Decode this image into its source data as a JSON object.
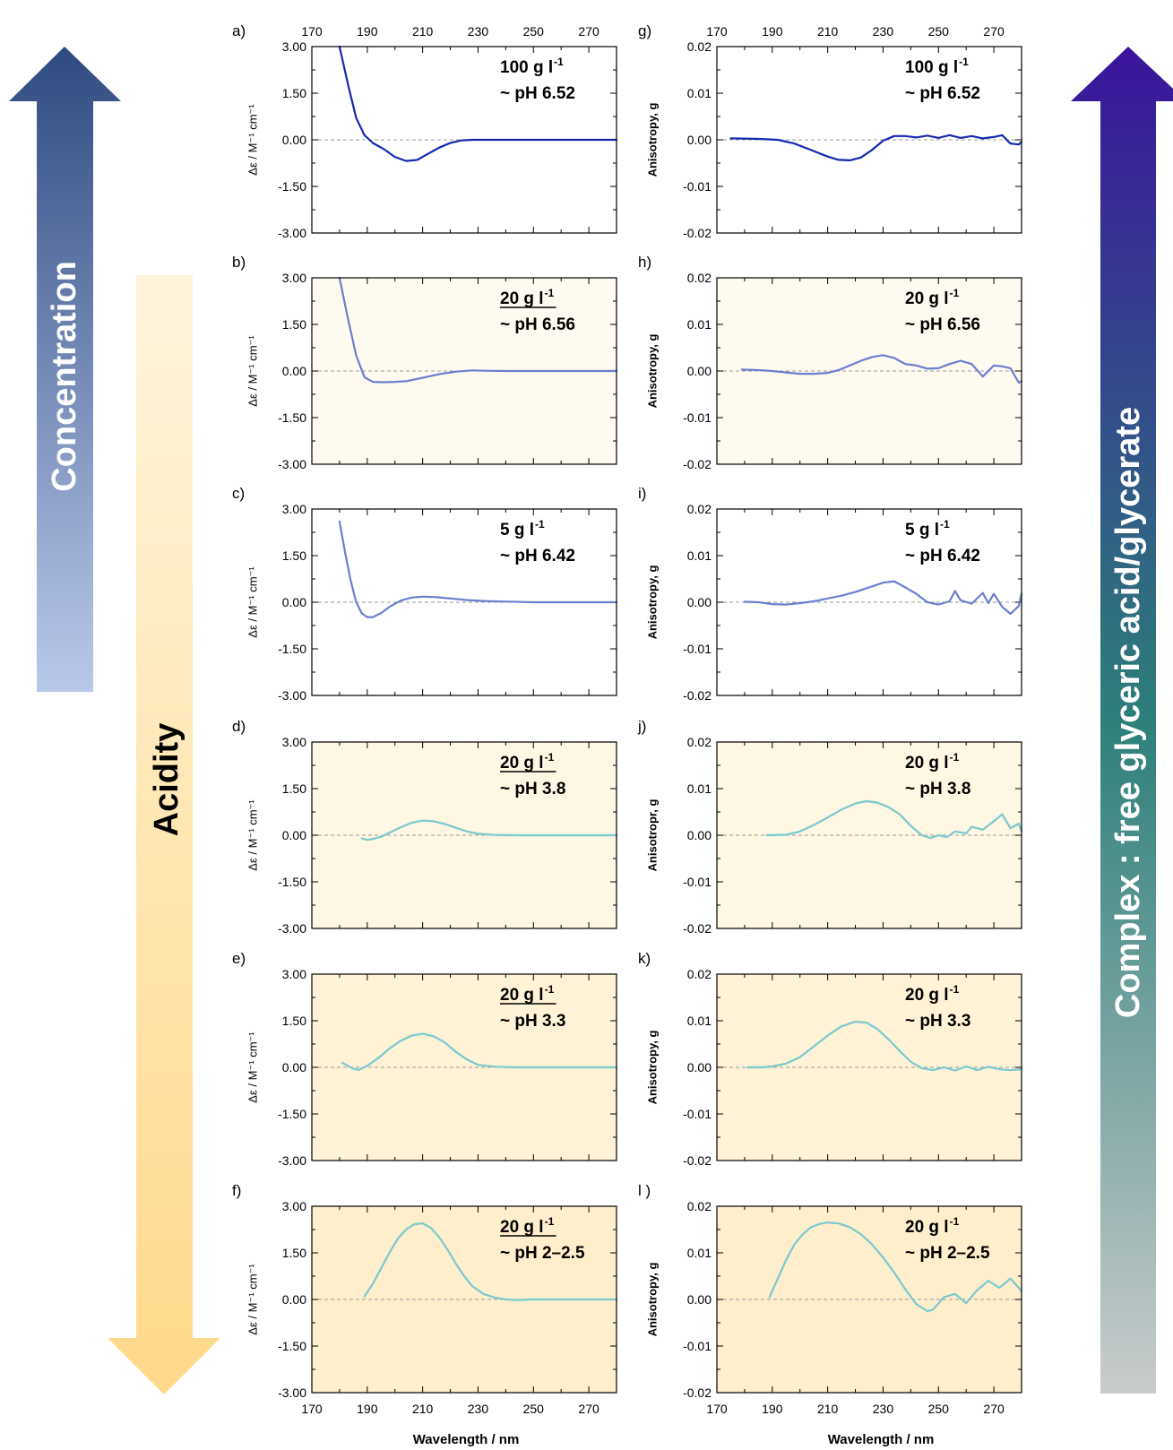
{
  "arrows": {
    "concentration": {
      "label": "Concentration",
      "color_top": "#2f4a80",
      "color_bottom": "#b9c9ea"
    },
    "acidity": {
      "label": "Acidity",
      "color_top": "#fff4dc",
      "color_bottom": "#ffd98a"
    },
    "complex": {
      "label": "Complex : free glyceric acid/glycerate",
      "color_top": "#3a139c",
      "color_mid": "#2d7f7a",
      "color_bottom": "#c9cccc"
    }
  },
  "colors": {
    "dark_blue": "#1529b0",
    "medium_blue": "#6b7fd0",
    "teal": "#79c9cf",
    "zero_line": "#9a9a9a"
  },
  "x_ticks": [
    "170",
    "190",
    "210",
    "230",
    "250",
    "270"
  ],
  "left_y_ticks": [
    "3.00",
    "1.50",
    "0.00",
    "-1.50",
    "-3.00"
  ],
  "right_y_ticks": [
    "0.02",
    "0.01",
    "0.00",
    "-0.01",
    "-0.02"
  ],
  "xlabel": "Wavelength / nm",
  "chart_data": [
    {
      "panel": "a)",
      "type": "line",
      "column": "left",
      "ylabel": "Δε / M⁻¹ cm⁻¹",
      "xlim": [
        170,
        280
      ],
      "ylim": [
        -3,
        3
      ],
      "conc_num": "100 g l",
      "conc_sup": "-1",
      "conc_underline": false,
      "ph": "~ pH 6.52",
      "bg": "#ffffff",
      "line_color": "#1529b0",
      "x": [
        180,
        183,
        186,
        189,
        192,
        196,
        200,
        204,
        208,
        212,
        216,
        220,
        224,
        228,
        232,
        240,
        250,
        260,
        270,
        280
      ],
      "y": [
        3.0,
        1.8,
        0.7,
        0.15,
        -0.1,
        -0.3,
        -0.55,
        -0.68,
        -0.65,
        -0.45,
        -0.25,
        -0.1,
        -0.02,
        0.0,
        0.0,
        0.0,
        0.0,
        0.0,
        0.0,
        0.0
      ]
    },
    {
      "panel": "b)",
      "type": "line",
      "column": "left",
      "ylabel": "Δε / M⁻¹ cm⁻¹",
      "xlim": [
        170,
        280
      ],
      "ylim": [
        -3,
        3
      ],
      "conc_num": "20 g l",
      "conc_sup": "-1",
      "conc_underline": true,
      "ph": "~ pH 6.56",
      "bg": "#fffaf0",
      "line_color": "#6b7fd0",
      "x": [
        180,
        183,
        186,
        189,
        192,
        196,
        200,
        204,
        210,
        216,
        222,
        228,
        232,
        240,
        250,
        260,
        270,
        280
      ],
      "y": [
        3.0,
        1.7,
        0.5,
        -0.2,
        -0.35,
        -0.36,
        -0.35,
        -0.33,
        -0.22,
        -0.1,
        -0.02,
        0.02,
        0.01,
        0.0,
        0.0,
        0.0,
        0.0,
        0.0
      ]
    },
    {
      "panel": "c)",
      "type": "line",
      "column": "left",
      "ylabel": "Δε / M⁻¹ cm⁻¹",
      "xlim": [
        170,
        280
      ],
      "ylim": [
        -3,
        3
      ],
      "conc_num": "5 g l",
      "conc_sup": "-1",
      "conc_underline": false,
      "ph": "~ pH 6.42",
      "bg": "#ffffff",
      "line_color": "#6b7fd0",
      "x": [
        180,
        182,
        184,
        186,
        188,
        190,
        192,
        195,
        198,
        202,
        206,
        210,
        214,
        220,
        226,
        232,
        240,
        250,
        260,
        270,
        280
      ],
      "y": [
        2.6,
        1.6,
        0.7,
        0.0,
        -0.35,
        -0.48,
        -0.48,
        -0.35,
        -0.15,
        0.05,
        0.15,
        0.18,
        0.17,
        0.12,
        0.07,
        0.04,
        0.02,
        0.0,
        0.0,
        0.0,
        0.0
      ]
    },
    {
      "panel": "d)",
      "type": "line",
      "column": "left",
      "ylabel": "Δε / M⁻¹ cm⁻¹",
      "xlim": [
        170,
        280
      ],
      "ylim": [
        -3,
        3
      ],
      "conc_num": "20 g l",
      "conc_sup": "-1",
      "conc_underline": true,
      "ph": "~ pH 3.8",
      "bg": "#fff6e3",
      "line_color": "#79c9cf",
      "x": [
        188,
        190,
        192,
        195,
        198,
        202,
        206,
        210,
        214,
        218,
        222,
        226,
        230,
        236,
        244,
        252,
        260,
        270,
        280
      ],
      "y": [
        -0.1,
        -0.15,
        -0.12,
        -0.05,
        0.08,
        0.25,
        0.4,
        0.47,
        0.45,
        0.36,
        0.24,
        0.12,
        0.05,
        0.01,
        0.0,
        0.0,
        0.0,
        0.0,
        0.0
      ]
    },
    {
      "panel": "e)",
      "type": "line",
      "column": "left",
      "ylabel": "Δε / M⁻¹ cm⁻¹",
      "xlim": [
        170,
        280
      ],
      "ylim": [
        -3,
        3
      ],
      "conc_num": "20 g l",
      "conc_sup": "-1",
      "conc_underline": true,
      "ph": "~ pH 3.3",
      "bg": "#fff2d6",
      "line_color": "#79c9cf",
      "x": [
        181,
        183,
        185,
        187,
        190,
        194,
        198,
        202,
        206,
        210,
        214,
        218,
        222,
        226,
        230,
        236,
        244,
        252,
        260,
        270,
        280
      ],
      "y": [
        0.15,
        0.05,
        -0.05,
        -0.08,
        0.05,
        0.3,
        0.6,
        0.85,
        1.02,
        1.08,
        1.0,
        0.8,
        0.5,
        0.25,
        0.08,
        0.02,
        0.0,
        0.0,
        0.0,
        0.0,
        0.0
      ]
    },
    {
      "panel": "f)",
      "type": "line",
      "column": "left",
      "ylabel": "Δε / M⁻¹ cm⁻¹",
      "xlim": [
        170,
        280
      ],
      "ylim": [
        -3,
        3
      ],
      "conc_num": "20 g l",
      "conc_sup": "-1",
      "conc_underline": true,
      "ph": "~ pH 2–2.5",
      "bg": "#ffeecc",
      "line_color": "#79c9cf",
      "x": [
        189,
        192,
        195,
        198,
        201,
        204,
        207,
        210,
        213,
        216,
        219,
        222,
        225,
        228,
        232,
        236,
        240,
        244,
        250,
        260,
        270,
        280
      ],
      "y": [
        0.1,
        0.5,
        1.0,
        1.5,
        1.95,
        2.25,
        2.42,
        2.45,
        2.3,
        2.0,
        1.6,
        1.15,
        0.75,
        0.42,
        0.18,
        0.06,
        0.0,
        -0.02,
        0.0,
        0.0,
        0.0,
        0.0
      ]
    },
    {
      "panel": "g)",
      "type": "line",
      "column": "right",
      "ylabel": "Anisotropy, g",
      "xlim": [
        170,
        280
      ],
      "ylim": [
        -0.02,
        0.02
      ],
      "conc_num": "100 g l",
      "conc_sup": "-1",
      "conc_underline": false,
      "ph": "~ pH 6.52",
      "bg": "#ffffff",
      "line_color": "#1529b0",
      "x": [
        175,
        185,
        192,
        198,
        204,
        210,
        214,
        218,
        222,
        226,
        230,
        234,
        238,
        242,
        246,
        250,
        254,
        258,
        262,
        266,
        270,
        273,
        276,
        279,
        280
      ],
      "y": [
        0.0003,
        0.0002,
        0.0,
        -0.0008,
        -0.0022,
        -0.0036,
        -0.0043,
        -0.0044,
        -0.0038,
        -0.0022,
        -0.0002,
        0.0008,
        0.0008,
        0.0005,
        0.0009,
        0.0004,
        0.001,
        0.0004,
        0.0008,
        0.0003,
        0.0006,
        0.001,
        -0.0008,
        -0.001,
        -0.0004
      ]
    },
    {
      "panel": "h)",
      "type": "line",
      "column": "right",
      "ylabel": "Anisotropy, g",
      "xlim": [
        170,
        280
      ],
      "ylim": [
        -0.02,
        0.02
      ],
      "conc_num": "20 g l",
      "conc_sup": "-1",
      "conc_underline": false,
      "ph": "~ pH 6.56",
      "bg": "#fffaf0",
      "line_color": "#6b7fd0",
      "x": [
        179,
        185,
        190,
        195,
        200,
        205,
        210,
        214,
        218,
        222,
        226,
        230,
        234,
        238,
        242,
        246,
        250,
        254,
        258,
        262,
        266,
        270,
        273,
        276,
        279,
        280
      ],
      "y": [
        0.0003,
        0.0002,
        0.0,
        -0.0003,
        -0.0006,
        -0.0006,
        -0.0004,
        0.0002,
        0.0012,
        0.0022,
        0.003,
        0.0034,
        0.0028,
        0.0015,
        0.0012,
        0.0005,
        0.0006,
        0.0015,
        0.0022,
        0.0015,
        -0.0012,
        0.0012,
        0.001,
        0.0006,
        -0.0025,
        -0.0022
      ]
    },
    {
      "panel": "i)",
      "type": "line",
      "column": "right",
      "ylabel": "Anisotropy, g",
      "xlim": [
        170,
        280
      ],
      "ylim": [
        -0.02,
        0.02
      ],
      "conc_num": "5 g l",
      "conc_sup": "-1",
      "conc_underline": false,
      "ph": "~ pH 6.42",
      "bg": "#ffffff",
      "line_color": "#6b7fd0",
      "x": [
        180,
        185,
        190,
        195,
        200,
        205,
        210,
        215,
        220,
        225,
        230,
        234,
        238,
        242,
        246,
        250,
        254,
        256,
        258,
        262,
        266,
        268,
        270,
        273,
        276,
        279,
        280
      ],
      "y": [
        0.0001,
        0.0,
        -0.0004,
        -0.0005,
        -0.0002,
        0.0002,
        0.0008,
        0.0014,
        0.0022,
        0.0032,
        0.0042,
        0.0045,
        0.0032,
        0.0018,
        0.0,
        -0.0005,
        0.0002,
        0.0024,
        0.0004,
        -0.0003,
        0.002,
        -0.0002,
        0.0018,
        -0.001,
        -0.0025,
        -0.0008,
        0.0018
      ]
    },
    {
      "panel": "j)",
      "type": "line",
      "column": "right",
      "ylabel": "Anisotropr, g",
      "xlim": [
        170,
        280
      ],
      "ylim": [
        -0.02,
        0.02
      ],
      "conc_num": "20 g l",
      "conc_sup": "-1",
      "conc_underline": false,
      "ph": "~ pH 3.8",
      "bg": "#fff6e3",
      "line_color": "#79c9cf",
      "x": [
        188,
        195,
        200,
        205,
        210,
        215,
        220,
        224,
        228,
        232,
        236,
        240,
        244,
        247,
        250,
        253,
        256,
        260,
        262,
        266,
        270,
        273,
        276,
        279,
        280
      ],
      "y": [
        0.0,
        0.0001,
        0.0008,
        0.0022,
        0.0038,
        0.0055,
        0.0068,
        0.0073,
        0.007,
        0.006,
        0.0045,
        0.002,
        0.0,
        -0.0006,
        0.0,
        -0.0004,
        0.0008,
        0.0004,
        0.0018,
        0.0012,
        0.003,
        0.0045,
        0.0015,
        0.0025,
        0.0008
      ]
    },
    {
      "panel": "k)",
      "type": "line",
      "column": "right",
      "ylabel": "Anisotropy, g",
      "xlim": [
        170,
        280
      ],
      "ylim": [
        -0.02,
        0.02
      ],
      "conc_num": "20 g l",
      "conc_sup": "-1",
      "conc_underline": false,
      "ph": "~ pH 3.3",
      "bg": "#fff2d6",
      "line_color": "#79c9cf",
      "x": [
        181,
        186,
        190,
        195,
        200,
        205,
        210,
        215,
        220,
        224,
        228,
        232,
        236,
        240,
        244,
        248,
        252,
        256,
        260,
        264,
        268,
        272,
        276,
        280
      ],
      "y": [
        0.0,
        0.0,
        0.0002,
        0.0008,
        0.0022,
        0.0045,
        0.0068,
        0.0088,
        0.0098,
        0.0096,
        0.0082,
        0.006,
        0.0035,
        0.0012,
        -0.0002,
        -0.0006,
        0.0,
        -0.0007,
        0.0002,
        -0.0006,
        0.0001,
        -0.0004,
        -0.0006,
        -0.0004
      ]
    },
    {
      "panel": "l )",
      "type": "line",
      "column": "right",
      "ylabel": "Anisotropy, g",
      "xlim": [
        170,
        280
      ],
      "ylim": [
        -0.02,
        0.02
      ],
      "conc_num": "20 g l",
      "conc_sup": "-1",
      "conc_underline": false,
      "ph": "~ pH 2–2.5",
      "bg": "#ffeecc",
      "line_color": "#79c9cf",
      "x": [
        189,
        192,
        195,
        198,
        201,
        204,
        207,
        210,
        214,
        218,
        222,
        226,
        230,
        234,
        238,
        242,
        246,
        248,
        252,
        256,
        260,
        264,
        268,
        272,
        276,
        280
      ],
      "y": [
        0.0005,
        0.0045,
        0.0085,
        0.0118,
        0.014,
        0.0155,
        0.0162,
        0.0165,
        0.0163,
        0.0155,
        0.014,
        0.0118,
        0.009,
        0.0058,
        0.0022,
        -0.001,
        -0.0025,
        -0.0022,
        0.0005,
        0.0012,
        -0.0008,
        0.002,
        0.004,
        0.0025,
        0.0045,
        0.0018
      ]
    }
  ]
}
